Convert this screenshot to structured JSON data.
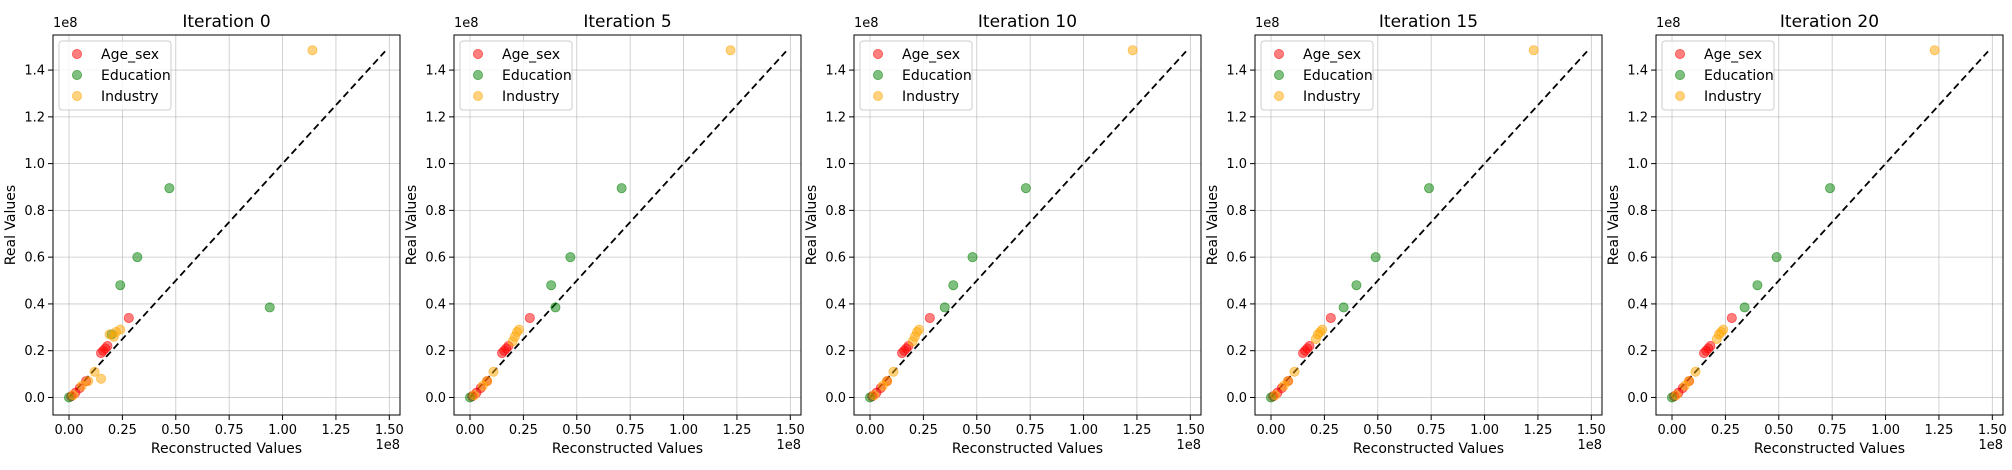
{
  "chart_data": [
    {
      "type": "scatter",
      "title": "Iteration 0",
      "xlabel": "Reconstructed Values",
      "ylabel": "Real Values",
      "x_offset_label": "1e8",
      "y_offset_label": "1e8",
      "xlim": [
        -0.075,
        1.55
      ],
      "ylim": [
        -0.075,
        1.55
      ],
      "x_ticks": [
        0,
        0.25,
        0.5,
        0.75,
        1.0,
        1.25,
        1.5
      ],
      "x_tick_labels": [
        "0.00",
        "0.25",
        "0.50",
        "0.75",
        "1.00",
        "1.25",
        "1.50"
      ],
      "y_ticks": [
        0,
        0.2,
        0.4,
        0.6,
        0.8,
        1.0,
        1.2,
        1.4
      ],
      "y_tick_labels": [
        "0.0",
        "0.2",
        "0.4",
        "0.6",
        "0.8",
        "1.0",
        "1.2",
        "1.4"
      ],
      "grid": true,
      "legend_position": "top-left",
      "reference_line": {
        "x": [
          0,
          1.48
        ],
        "y": [
          0,
          1.48
        ],
        "style": "dashed",
        "color": "#000000"
      },
      "series": [
        {
          "name": "Age_sex",
          "color": "#ff0000",
          "points": [
            [
              0.01,
              0.005
            ],
            [
              0.03,
              0.02
            ],
            [
              0.05,
              0.04
            ],
            [
              0.08,
              0.07
            ],
            [
              0.15,
              0.19
            ],
            [
              0.16,
              0.2
            ],
            [
              0.17,
              0.21
            ],
            [
              0.18,
              0.22
            ],
            [
              0.28,
              0.34
            ]
          ]
        },
        {
          "name": "Education",
          "color": "#008000",
          "points": [
            [
              0.0,
              0.0
            ],
            [
              0.2,
              0.27
            ],
            [
              0.24,
              0.48
            ],
            [
              0.32,
              0.6
            ],
            [
              0.47,
              0.895
            ],
            [
              0.94,
              0.385
            ]
          ]
        },
        {
          "name": "Industry",
          "color": "#ffa500",
          "points": [
            [
              0.02,
              0.01
            ],
            [
              0.06,
              0.05
            ],
            [
              0.09,
              0.07
            ],
            [
              0.12,
              0.11
            ],
            [
              0.15,
              0.08
            ],
            [
              0.19,
              0.27
            ],
            [
              0.21,
              0.26
            ],
            [
              0.22,
              0.28
            ],
            [
              0.24,
              0.29
            ],
            [
              1.14,
              1.485
            ]
          ]
        }
      ]
    },
    {
      "type": "scatter",
      "title": "Iteration 5",
      "xlabel": "Reconstructed Values",
      "ylabel": "Real Values",
      "x_offset_label": "1e8",
      "y_offset_label": "1e8",
      "xlim": [
        -0.075,
        1.55
      ],
      "ylim": [
        -0.075,
        1.55
      ],
      "x_ticks": [
        0,
        0.25,
        0.5,
        0.75,
        1.0,
        1.25,
        1.5
      ],
      "x_tick_labels": [
        "0.00",
        "0.25",
        "0.50",
        "0.75",
        "1.00",
        "1.25",
        "1.50"
      ],
      "y_ticks": [
        0,
        0.2,
        0.4,
        0.6,
        0.8,
        1.0,
        1.2,
        1.4
      ],
      "y_tick_labels": [
        "0.0",
        "0.2",
        "0.4",
        "0.6",
        "0.8",
        "1.0",
        "1.2",
        "1.4"
      ],
      "grid": true,
      "legend_position": "top-left",
      "reference_line": {
        "x": [
          0,
          1.48
        ],
        "y": [
          0,
          1.48
        ],
        "style": "dashed",
        "color": "#000000"
      },
      "series": [
        {
          "name": "Age_sex",
          "color": "#ff0000",
          "points": [
            [
              0.01,
              0.005
            ],
            [
              0.03,
              0.02
            ],
            [
              0.05,
              0.04
            ],
            [
              0.08,
              0.07
            ],
            [
              0.15,
              0.19
            ],
            [
              0.16,
              0.2
            ],
            [
              0.17,
              0.21
            ],
            [
              0.18,
              0.22
            ],
            [
              0.28,
              0.34
            ]
          ]
        },
        {
          "name": "Education",
          "color": "#008000",
          "points": [
            [
              0.0,
              0.0
            ],
            [
              0.38,
              0.48
            ],
            [
              0.4,
              0.385
            ],
            [
              0.47,
              0.6
            ],
            [
              0.71,
              0.895
            ]
          ]
        },
        {
          "name": "Industry",
          "color": "#ffa500",
          "points": [
            [
              0.02,
              0.01
            ],
            [
              0.06,
              0.05
            ],
            [
              0.08,
              0.07
            ],
            [
              0.11,
              0.11
            ],
            [
              0.2,
              0.24
            ],
            [
              0.21,
              0.26
            ],
            [
              0.22,
              0.28
            ],
            [
              0.23,
              0.29
            ],
            [
              1.22,
              1.485
            ]
          ]
        }
      ]
    },
    {
      "type": "scatter",
      "title": "Iteration 10",
      "xlabel": "Reconstructed Values",
      "ylabel": "Real Values",
      "x_offset_label": "1e8",
      "y_offset_label": "1e8",
      "xlim": [
        -0.075,
        1.55
      ],
      "ylim": [
        -0.075,
        1.55
      ],
      "x_ticks": [
        0,
        0.25,
        0.5,
        0.75,
        1.0,
        1.25,
        1.5
      ],
      "x_tick_labels": [
        "0.00",
        "0.25",
        "0.50",
        "0.75",
        "1.00",
        "1.25",
        "1.50"
      ],
      "y_ticks": [
        0,
        0.2,
        0.4,
        0.6,
        0.8,
        1.0,
        1.2,
        1.4
      ],
      "y_tick_labels": [
        "0.0",
        "0.2",
        "0.4",
        "0.6",
        "0.8",
        "1.0",
        "1.2",
        "1.4"
      ],
      "grid": true,
      "legend_position": "top-left",
      "reference_line": {
        "x": [
          0,
          1.48
        ],
        "y": [
          0,
          1.48
        ],
        "style": "dashed",
        "color": "#000000"
      },
      "series": [
        {
          "name": "Age_sex",
          "color": "#ff0000",
          "points": [
            [
              0.01,
              0.005
            ],
            [
              0.03,
              0.02
            ],
            [
              0.05,
              0.04
            ],
            [
              0.08,
              0.07
            ],
            [
              0.15,
              0.19
            ],
            [
              0.16,
              0.2
            ],
            [
              0.17,
              0.21
            ],
            [
              0.18,
              0.22
            ],
            [
              0.28,
              0.34
            ]
          ]
        },
        {
          "name": "Education",
          "color": "#008000",
          "points": [
            [
              0.0,
              0.0
            ],
            [
              0.35,
              0.385
            ],
            [
              0.39,
              0.48
            ],
            [
              0.48,
              0.6
            ],
            [
              0.73,
              0.895
            ]
          ]
        },
        {
          "name": "Industry",
          "color": "#ffa500",
          "points": [
            [
              0.02,
              0.01
            ],
            [
              0.06,
              0.05
            ],
            [
              0.08,
              0.07
            ],
            [
              0.11,
              0.11
            ],
            [
              0.2,
              0.24
            ],
            [
              0.21,
              0.26
            ],
            [
              0.22,
              0.28
            ],
            [
              0.23,
              0.29
            ],
            [
              1.23,
              1.485
            ]
          ]
        }
      ]
    },
    {
      "type": "scatter",
      "title": "Iteration 15",
      "xlabel": "Reconstructed Values",
      "ylabel": "Real Values",
      "x_offset_label": "1e8",
      "y_offset_label": "1e8",
      "xlim": [
        -0.075,
        1.55
      ],
      "ylim": [
        -0.075,
        1.55
      ],
      "x_ticks": [
        0,
        0.25,
        0.5,
        0.75,
        1.0,
        1.25,
        1.5
      ],
      "x_tick_labels": [
        "0.00",
        "0.25",
        "0.50",
        "0.75",
        "1.00",
        "1.25",
        "1.50"
      ],
      "y_ticks": [
        0,
        0.2,
        0.4,
        0.6,
        0.8,
        1.0,
        1.2,
        1.4
      ],
      "y_tick_labels": [
        "0.0",
        "0.2",
        "0.4",
        "0.6",
        "0.8",
        "1.0",
        "1.2",
        "1.4"
      ],
      "grid": true,
      "legend_position": "top-left",
      "reference_line": {
        "x": [
          0,
          1.48
        ],
        "y": [
          0,
          1.48
        ],
        "style": "dashed",
        "color": "#000000"
      },
      "series": [
        {
          "name": "Age_sex",
          "color": "#ff0000",
          "points": [
            [
              0.01,
              0.005
            ],
            [
              0.03,
              0.02
            ],
            [
              0.05,
              0.04
            ],
            [
              0.08,
              0.07
            ],
            [
              0.15,
              0.19
            ],
            [
              0.16,
              0.2
            ],
            [
              0.17,
              0.21
            ],
            [
              0.18,
              0.22
            ],
            [
              0.28,
              0.34
            ]
          ]
        },
        {
          "name": "Education",
          "color": "#008000",
          "points": [
            [
              0.0,
              0.0
            ],
            [
              0.34,
              0.385
            ],
            [
              0.4,
              0.48
            ],
            [
              0.49,
              0.6
            ],
            [
              0.74,
              0.895
            ]
          ]
        },
        {
          "name": "Industry",
          "color": "#ffa500",
          "points": [
            [
              0.02,
              0.01
            ],
            [
              0.06,
              0.05
            ],
            [
              0.08,
              0.07
            ],
            [
              0.11,
              0.11
            ],
            [
              0.21,
              0.25
            ],
            [
              0.22,
              0.27
            ],
            [
              0.23,
              0.28
            ],
            [
              0.24,
              0.29
            ],
            [
              1.23,
              1.485
            ]
          ]
        }
      ]
    },
    {
      "type": "scatter",
      "title": "Iteration 20",
      "xlabel": "Reconstructed Values",
      "ylabel": "Real Values",
      "x_offset_label": "1e8",
      "y_offset_label": "1e8",
      "xlim": [
        -0.075,
        1.55
      ],
      "ylim": [
        -0.075,
        1.55
      ],
      "x_ticks": [
        0,
        0.25,
        0.5,
        0.75,
        1.0,
        1.25,
        1.5
      ],
      "x_tick_labels": [
        "0.00",
        "0.25",
        "0.50",
        "0.75",
        "1.00",
        "1.25",
        "1.50"
      ],
      "y_ticks": [
        0,
        0.2,
        0.4,
        0.6,
        0.8,
        1.0,
        1.2,
        1.4
      ],
      "y_tick_labels": [
        "0.0",
        "0.2",
        "0.4",
        "0.6",
        "0.8",
        "1.0",
        "1.2",
        "1.4"
      ],
      "grid": true,
      "legend_position": "top-left",
      "reference_line": {
        "x": [
          0,
          1.48
        ],
        "y": [
          0,
          1.48
        ],
        "style": "dashed",
        "color": "#000000"
      },
      "series": [
        {
          "name": "Age_sex",
          "color": "#ff0000",
          "points": [
            [
              0.01,
              0.005
            ],
            [
              0.03,
              0.02
            ],
            [
              0.05,
              0.04
            ],
            [
              0.08,
              0.07
            ],
            [
              0.15,
              0.19
            ],
            [
              0.16,
              0.2
            ],
            [
              0.17,
              0.21
            ],
            [
              0.18,
              0.22
            ],
            [
              0.28,
              0.34
            ]
          ]
        },
        {
          "name": "Education",
          "color": "#008000",
          "points": [
            [
              0.0,
              0.0
            ],
            [
              0.34,
              0.385
            ],
            [
              0.4,
              0.48
            ],
            [
              0.49,
              0.6
            ],
            [
              0.74,
              0.895
            ]
          ]
        },
        {
          "name": "Industry",
          "color": "#ffa500",
          "points": [
            [
              0.02,
              0.01
            ],
            [
              0.06,
              0.05
            ],
            [
              0.08,
              0.07
            ],
            [
              0.11,
              0.11
            ],
            [
              0.21,
              0.25
            ],
            [
              0.22,
              0.27
            ],
            [
              0.23,
              0.28
            ],
            [
              0.24,
              0.29
            ],
            [
              1.23,
              1.485
            ]
          ]
        }
      ]
    }
  ]
}
